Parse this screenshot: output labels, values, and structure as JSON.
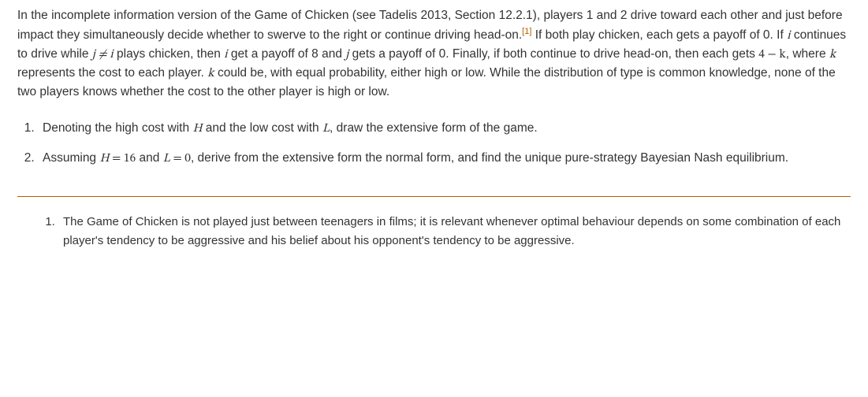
{
  "intro": {
    "seg1": "In the incomplete information version of the Game of Chicken (see Tadelis 2013, Section 12.2.1), players 1 and 2 drive toward each other and just before impact they simultaneously decide whether to swerve to the right or continue driving head-on.",
    "footref": "[1]",
    "seg2": "  If both play chicken, each gets a payoff of 0. If ",
    "i1": "i",
    "seg3": " continues to drive while ",
    "jnei": "j ≠ i",
    "seg4": " plays chicken, then ",
    "i2": "i",
    "seg5": " get a payoff of 8 and ",
    "j2": "j",
    "seg6": " gets a payoff of 0. Finally, if both continue to drive head-on, then each gets ",
    "fourmk": "4 − k",
    "seg7": ", where ",
    "k1": "k",
    "seg8": " represents the cost to each player. ",
    "k2": "k",
    "seg9": " could be, with equal probability, either high or low. While the distribution of type is common knowledge, none of the two players knows whether the cost to the other player is high or low."
  },
  "q1": {
    "a": "Denoting the high cost with ",
    "H": "H",
    "b": " and the low cost with ",
    "L": "L",
    "c": ", draw the extensive form of the game."
  },
  "q2": {
    "a": "Assuming ",
    "H": "H",
    "eq1a": " = ",
    "eq1b": "16",
    "b": " and ",
    "L": "L",
    "eq2a": " = ",
    "eq2b": "0",
    "c": ", derive from the extensive form the normal form, and find the unique pure-strategy Bayesian Nash equilibrium."
  },
  "footnote": {
    "text": "The Game of Chicken is not played just between teenagers in films; it is relevant whenever optimal behaviour depends on some combination of each player's tendency to be aggressive and his belief about his opponent's tendency to be aggressive."
  },
  "colors": {
    "text": "#333333",
    "accent": "#b85c00",
    "background": "#ffffff"
  }
}
